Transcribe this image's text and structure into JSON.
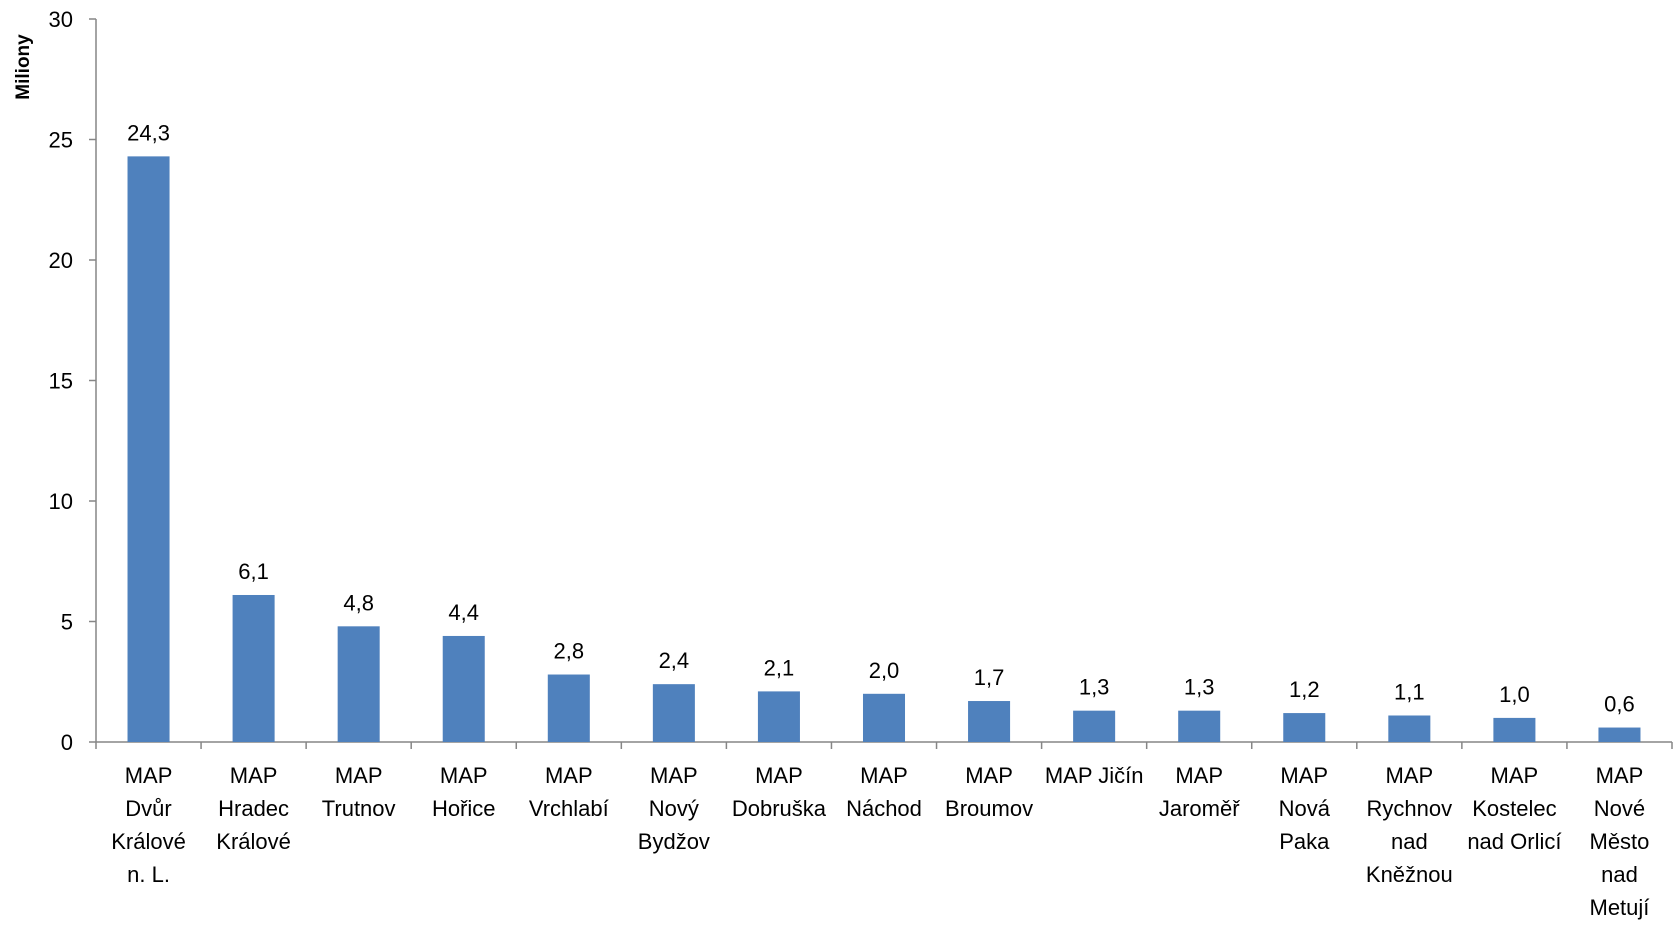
{
  "chart_data": {
    "type": "bar",
    "title": "",
    "xlabel": "",
    "ylabel": "Miliony",
    "ylim": [
      0,
      30
    ],
    "yticks": [
      0,
      5,
      10,
      15,
      20,
      25,
      30
    ],
    "grid": false,
    "legend": "none",
    "bar_color": "#4F81BD",
    "categories": [
      [
        "MAP",
        "Dvůr",
        "Králové",
        "n. L."
      ],
      [
        "MAP",
        "Hradec",
        "Králové"
      ],
      [
        "MAP",
        "Trutnov"
      ],
      [
        "MAP",
        "Hořice"
      ],
      [
        "MAP",
        "Vrchlabí"
      ],
      [
        "MAP",
        "Nový",
        "Bydžov"
      ],
      [
        "MAP",
        "Dobruška"
      ],
      [
        "MAP",
        "Náchod"
      ],
      [
        "MAP",
        "Broumov"
      ],
      [
        "MAP Jičín"
      ],
      [
        "MAP",
        "Jaroměř"
      ],
      [
        "MAP",
        "Nová",
        "Paka"
      ],
      [
        "MAP",
        "Rychnov",
        "nad",
        "Kněžnou"
      ],
      [
        "MAP",
        "Kostelec",
        "nad Orlicí"
      ],
      [
        "MAP",
        "Nové",
        "Město",
        "nad",
        "Metují"
      ]
    ],
    "values": [
      24.3,
      6.1,
      4.8,
      4.4,
      2.8,
      2.4,
      2.1,
      2.0,
      1.7,
      1.3,
      1.3,
      1.2,
      1.1,
      1.0,
      0.6
    ],
    "data_labels": [
      "24,3",
      "6,1",
      "4,8",
      "4,4",
      "2,8",
      "2,4",
      "2,1",
      "2,0",
      "1,7",
      "1,3",
      "1,3",
      "1,2",
      "1,1",
      "1,0",
      "0,6"
    ]
  }
}
